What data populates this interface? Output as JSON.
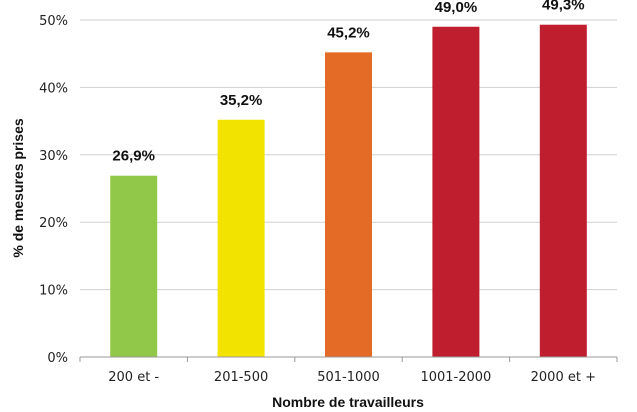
{
  "chart_data": {
    "type": "bar",
    "categories": [
      "200 et -",
      "201-500",
      "501-1000",
      "1001-2000",
      "2000 et +"
    ],
    "values": [
      26.9,
      35.2,
      45.2,
      49.0,
      49.3
    ],
    "data_labels": [
      "26,9%",
      "35,2%",
      "45,2%",
      "49,0%",
      "49,3%"
    ],
    "colors": [
      "#92c84a",
      "#f2e400",
      "#e46b25",
      "#be1e2d",
      "#be1e2d"
    ],
    "xlabel": "Nombre de travailleurs",
    "ylabel": "% de mesures prises",
    "ylim": [
      0,
      50
    ],
    "yticks": [
      0,
      10,
      20,
      30,
      40,
      50
    ],
    "ytick_labels": [
      "0%",
      "10%",
      "20%",
      "30%",
      "40%",
      "50%"
    ],
    "grid": true,
    "legend": "none"
  }
}
